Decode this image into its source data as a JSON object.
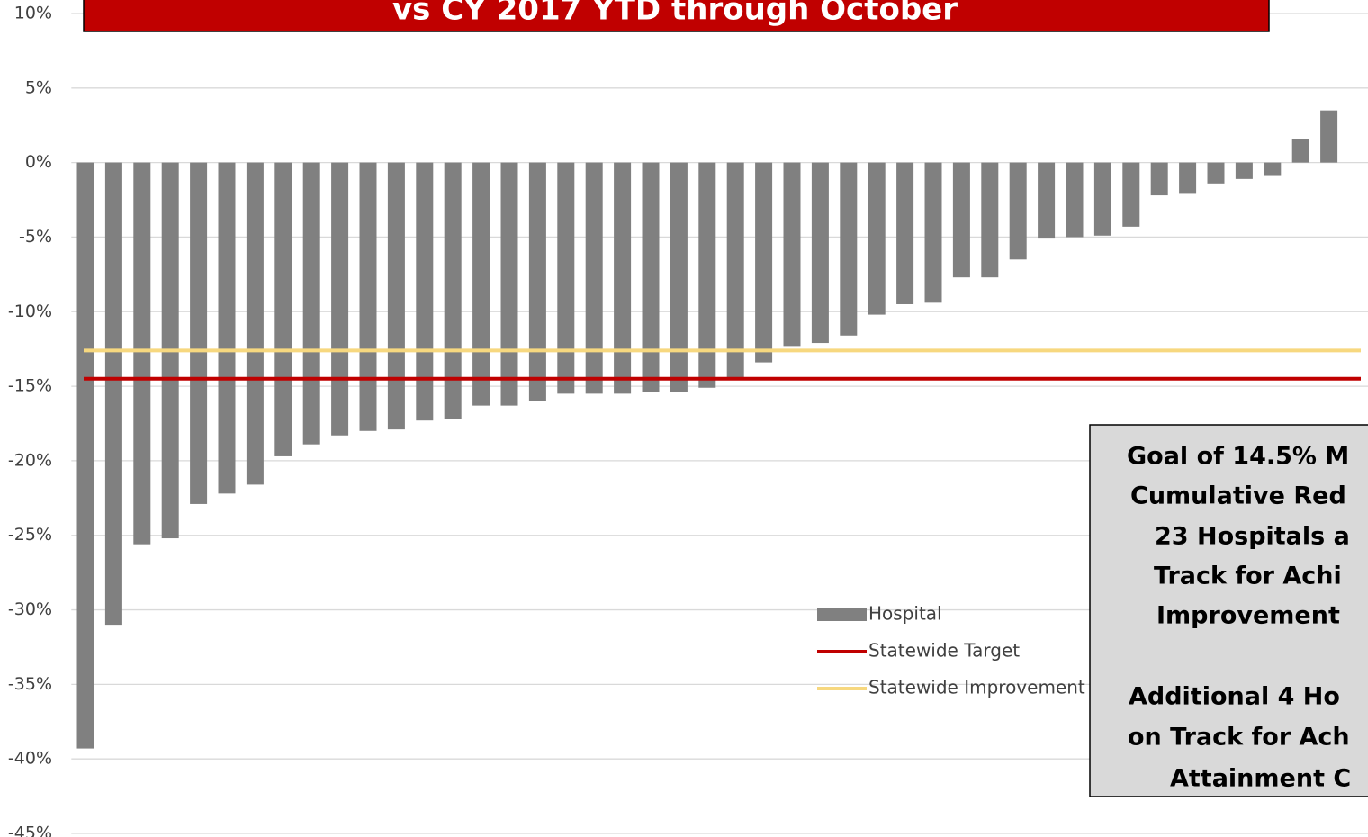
{
  "chart_data": {
    "type": "bar",
    "title": "vs CY 2017 YTD through October",
    "values": [
      -39.3,
      -31,
      -25.6,
      -25.2,
      -22.9,
      -22.2,
      -21.6,
      -19.7,
      -18.9,
      -18.3,
      -18.0,
      -17.9,
      -17.3,
      -17.2,
      -16.3,
      -16.3,
      -16.0,
      -15.5,
      -15.5,
      -15.5,
      -15.4,
      -15.4,
      -15.1,
      -14.4,
      -13.4,
      -12.3,
      -12.1,
      -11.6,
      -10.2,
      -9.5,
      -9.4,
      -7.7,
      -7.7,
      -6.5,
      -5.1,
      -5.0,
      -4.9,
      -4.3,
      -2.2,
      -2.1,
      -1.4,
      -1.1,
      -0.9,
      1.6,
      3.5
    ],
    "series": [
      {
        "name": "Hospital",
        "color": "#808080"
      },
      {
        "name": "Statewide Target",
        "color": "#c00000",
        "value": -14.5
      },
      {
        "name": "Statewide Improvement",
        "color": "#f7d87f",
        "value": -12.6
      }
    ],
    "ylim": [
      -45,
      10
    ],
    "yticks": [
      {
        "value": -45,
        "label": "-45%"
      },
      {
        "value": -40,
        "label": "-40%"
      },
      {
        "value": -35,
        "label": "-35%"
      },
      {
        "value": -30,
        "label": "-30%"
      },
      {
        "value": -25,
        "label": "-25%"
      },
      {
        "value": -20,
        "label": "-20%"
      },
      {
        "value": -15,
        "label": "-15%"
      },
      {
        "value": -10,
        "label": "-10%"
      },
      {
        "value": -5,
        "label": "-5%"
      },
      {
        "value": 0,
        "label": "0%"
      },
      {
        "value": 5,
        "label": "5%"
      },
      {
        "value": 10,
        "label": "10%"
      }
    ],
    "grid": true,
    "annotation": [
      "Goal of 14.5% M",
      "Cumulative Red",
      "23 Hospitals a",
      "Track for Achi",
      "Improvement",
      "Additional 4 Ho",
      "on Track for Ach",
      "Attainment C"
    ]
  }
}
